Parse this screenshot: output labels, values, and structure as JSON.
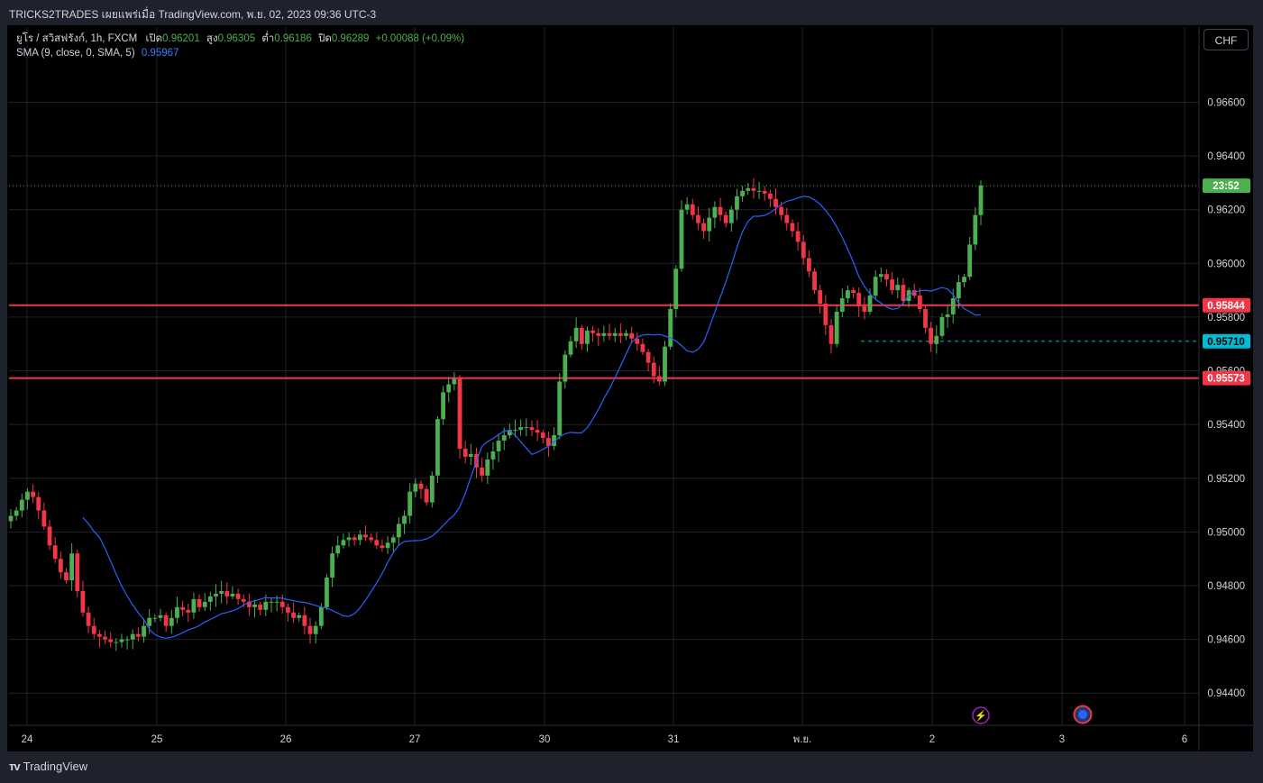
{
  "header": {
    "title": "TRICKS2TRADES เผยแพร่เมื่อ TradingView.com, พ.ย. 02, 2023 09:36 UTC-3"
  },
  "legend": {
    "symbol": "ยูโร / สวิสฟรังก์, 1h, FXCM",
    "open_label": "เปิด",
    "open": "0.96201",
    "high_label": "สูง",
    "high": "0.96305",
    "low_label": "ต่ำ",
    "low": "0.96186",
    "close_label": "ปิด",
    "close": "0.96289",
    "change": "+0.00088 (+0.09%)",
    "sma_label": "SMA (9, close, 0, SMA, 5)",
    "sma_value": "0.95967"
  },
  "currency_button": "CHF",
  "footer": {
    "brand": "TradingView"
  },
  "colors": {
    "up": "#4caf50",
    "down": "#f23645",
    "sma": "#2962ff",
    "level": "#f23645",
    "marker": "#00bcd4",
    "countdown": "#4caf50"
  },
  "chart_data": {
    "type": "candlestick",
    "title": "ยูโร / สวิสฟรังก์, 1h, FXCM",
    "y_ticks": [
      "0.96600",
      "0.96400",
      "0.96200",
      "0.96000",
      "0.95800",
      "0.95600",
      "0.95400",
      "0.95200",
      "0.95000",
      "0.94800",
      "0.94600",
      "0.94400"
    ],
    "ylim": [
      0.9428,
      0.9688
    ],
    "x_ticks": [
      "24",
      "25",
      "26",
      "27",
      "30",
      "31",
      "พ.ย.",
      "2",
      "3",
      "6"
    ],
    "horizontal_levels": [
      {
        "value": 0.95844,
        "label": "0.95844",
        "style": "solid-red"
      },
      {
        "value": 0.95573,
        "label": "0.95573",
        "style": "solid-red"
      }
    ],
    "marker_level": {
      "value": 0.9571,
      "label": "0.95710"
    },
    "last_price": {
      "value": 0.96289,
      "countdown": "23:52"
    },
    "sma": {
      "name": "SMA (9, close, 0, SMA, 5)",
      "last": 0.95967
    },
    "series": [
      {
        "name": "EURCHF 1h",
        "closes": [
          0.9506,
          0.9508,
          0.9512,
          0.9515,
          0.9513,
          0.9508,
          0.9502,
          0.9495,
          0.949,
          0.9485,
          0.9482,
          0.9492,
          0.9478,
          0.947,
          0.9465,
          0.9462,
          0.9461,
          0.946,
          0.9459,
          0.9459,
          0.946,
          0.946,
          0.9462,
          0.9461,
          0.9465,
          0.9468,
          0.9468,
          0.9469,
          0.9465,
          0.9468,
          0.9472,
          0.9471,
          0.947,
          0.9475,
          0.9472,
          0.9474,
          0.9476,
          0.9477,
          0.9478,
          0.9476,
          0.9477,
          0.9475,
          0.9474,
          0.9472,
          0.9473,
          0.9471,
          0.9474,
          0.9474,
          0.9474,
          0.9472,
          0.947,
          0.9468,
          0.9469,
          0.9465,
          0.9462,
          0.9465,
          0.9472,
          0.9483,
          0.9492,
          0.9495,
          0.9497,
          0.9498,
          0.9497,
          0.9499,
          0.9498,
          0.9497,
          0.9495,
          0.9494,
          0.9496,
          0.9498,
          0.9503,
          0.9506,
          0.9515,
          0.9518,
          0.9516,
          0.9511,
          0.9521,
          0.9542,
          0.9552,
          0.9555,
          0.9557,
          0.9531,
          0.9528,
          0.9529,
          0.9524,
          0.9521,
          0.9527,
          0.953,
          0.9534,
          0.9536,
          0.9538,
          0.9538,
          0.9539,
          0.9539,
          0.9538,
          0.9537,
          0.9535,
          0.9532,
          0.9536,
          0.9556,
          0.9566,
          0.9571,
          0.9576,
          0.957,
          0.9575,
          0.9574,
          0.9573,
          0.9574,
          0.9573,
          0.9574,
          0.9573,
          0.9574,
          0.9572,
          0.957,
          0.9567,
          0.9563,
          0.9558,
          0.9556,
          0.9569,
          0.9583,
          0.9598,
          0.962,
          0.9622,
          0.9618,
          0.9615,
          0.9612,
          0.9617,
          0.9621,
          0.9618,
          0.9615,
          0.962,
          0.9625,
          0.9627,
          0.9628,
          0.9627,
          0.9627,
          0.9626,
          0.9624,
          0.9621,
          0.9618,
          0.9615,
          0.9612,
          0.9608,
          0.9602,
          0.9597,
          0.959,
          0.9585,
          0.9577,
          0.957,
          0.9582,
          0.9587,
          0.959,
          0.9589,
          0.9584,
          0.9582,
          0.9588,
          0.9595,
          0.9596,
          0.9594,
          0.959,
          0.9592,
          0.9586,
          0.959,
          0.9588,
          0.9583,
          0.9576,
          0.957,
          0.9573,
          0.958,
          0.9581,
          0.9587,
          0.9593,
          0.9595,
          0.9607,
          0.9618,
          0.9629
        ]
      }
    ]
  }
}
